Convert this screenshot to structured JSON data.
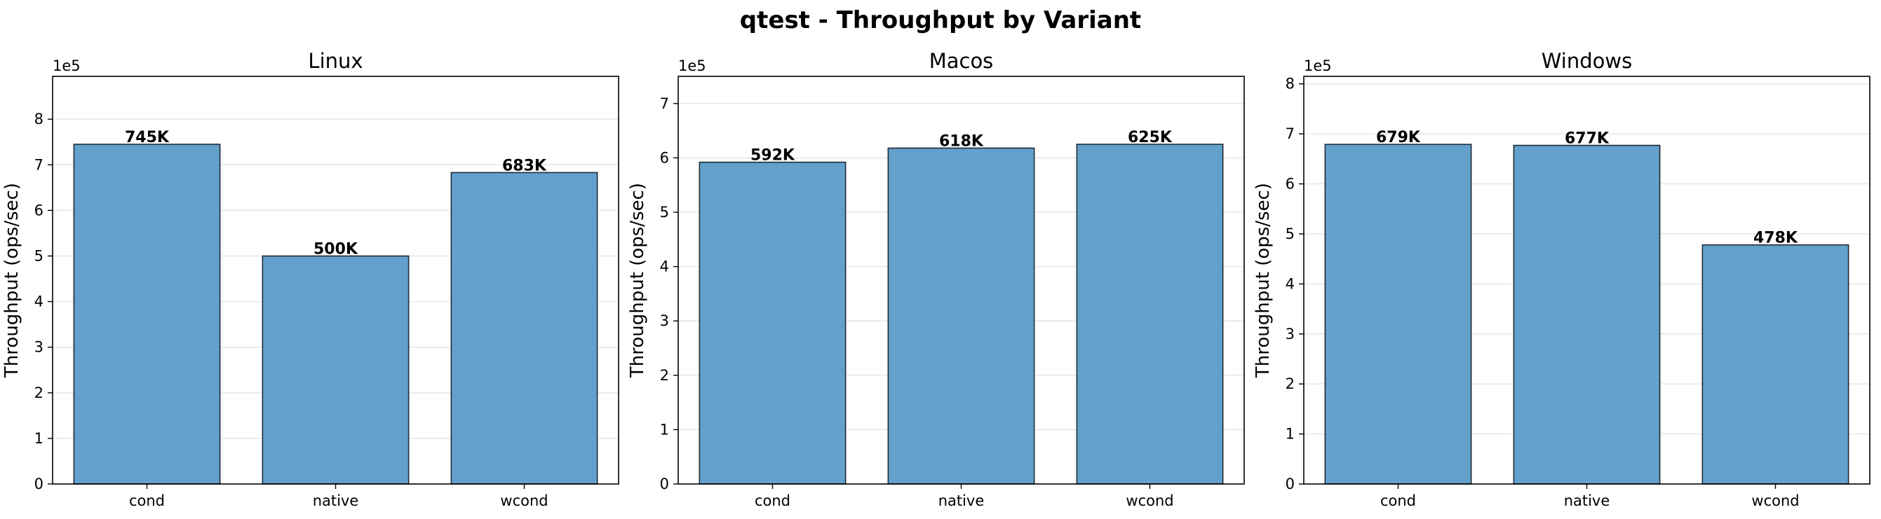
{
  "figure": {
    "title": "qtest - Throughput by Variant"
  },
  "colors": {
    "bar_fill": "#63a0cb",
    "bar_edge": "#1f2a36",
    "grid": "#e6e6e6"
  },
  "chart_data": [
    {
      "type": "bar",
      "title": "Linux",
      "ylabel": "Throughput (ops/sec)",
      "y_offset_label": "1e5",
      "categories": [
        "cond",
        "native",
        "wcond"
      ],
      "values": [
        745000,
        500000,
        683000
      ],
      "data_labels": [
        "745K",
        "500K",
        "683K"
      ],
      "yticks": [
        0,
        1,
        2,
        3,
        4,
        5,
        6,
        7,
        8
      ],
      "ylim": [
        0,
        894000
      ],
      "grid": true,
      "legend": "none"
    },
    {
      "type": "bar",
      "title": "Macos",
      "ylabel": "Throughput (ops/sec)",
      "y_offset_label": "1e5",
      "categories": [
        "cond",
        "native",
        "wcond"
      ],
      "values": [
        592000,
        618000,
        625000
      ],
      "data_labels": [
        "592K",
        "618K",
        "625K"
      ],
      "yticks": [
        0,
        1,
        2,
        3,
        4,
        5,
        6,
        7
      ],
      "ylim": [
        0,
        750000
      ],
      "grid": true,
      "legend": "none"
    },
    {
      "type": "bar",
      "title": "Windows",
      "ylabel": "Throughput (ops/sec)",
      "y_offset_label": "1e5",
      "categories": [
        "cond",
        "native",
        "wcond"
      ],
      "values": [
        679000,
        677000,
        478000
      ],
      "data_labels": [
        "679K",
        "677K",
        "478K"
      ],
      "yticks": [
        0,
        1,
        2,
        3,
        4,
        5,
        6,
        7,
        8
      ],
      "ylim": [
        0,
        815000
      ],
      "grid": true,
      "legend": "none"
    }
  ]
}
